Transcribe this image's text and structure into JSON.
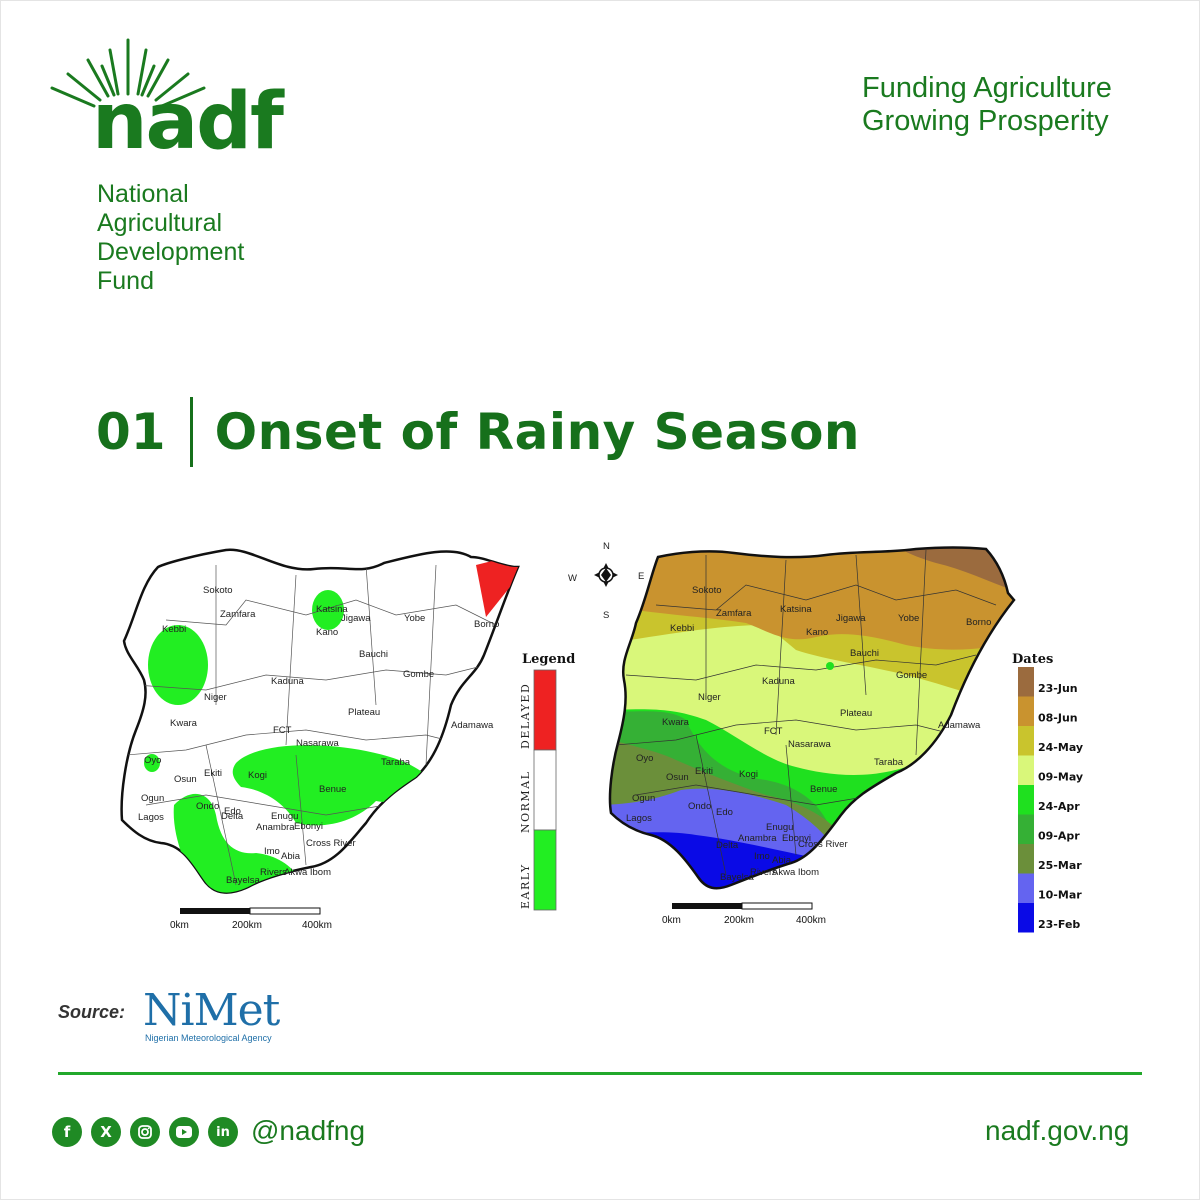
{
  "brand": {
    "logo_text": "nadf",
    "org_name_lines": [
      "National",
      "Agricultural",
      "Development",
      "Fund"
    ],
    "tagline_lines": [
      "Funding Agriculture",
      "Growing Prosperity"
    ],
    "color_primary": "#1a7a1f"
  },
  "section": {
    "number": "01",
    "title": "Onset of Rainy Season"
  },
  "map_left": {
    "legend_title": "Legend",
    "legend_categories": [
      {
        "label": "DELAYED",
        "color": "#ee2222"
      },
      {
        "label": "NORMAL",
        "color": "#ffffff"
      },
      {
        "label": "EARLY",
        "color": "#22ee22"
      }
    ],
    "state_labels": [
      "Sokoto",
      "Zamfara",
      "Katsina",
      "Jigawa",
      "Kano",
      "Yobe",
      "Borno",
      "Kebbi",
      "Bauchi",
      "Gombe",
      "Niger",
      "Kaduna",
      "Adamawa",
      "Kwara",
      "FCT",
      "Plateau",
      "Nasarawa",
      "Oyo",
      "Osun",
      "Ekiti",
      "Kogi",
      "Benue",
      "Taraba",
      "Ogun",
      "Ondo",
      "Edo",
      "Lagos",
      "Enugu",
      "Ebonyi",
      "Anambra",
      "Delta",
      "Imo",
      "Cross River",
      "Abia",
      "Rivers",
      "Akwa Ibom",
      "Bayelsa"
    ],
    "scale": [
      "0km",
      "200km",
      "400km"
    ]
  },
  "map_right": {
    "compass": [
      "N",
      "E",
      "S",
      "W"
    ],
    "legend_title": "Dates",
    "date_classes": [
      {
        "label": "23-Jun",
        "color": "#9b6b3e"
      },
      {
        "label": "08-Jun",
        "color": "#c9932f"
      },
      {
        "label": "24-May",
        "color": "#c9c42d"
      },
      {
        "label": "09-May",
        "color": "#d9f77a"
      },
      {
        "label": "24-Apr",
        "color": "#1fe01f"
      },
      {
        "label": "09-Apr",
        "color": "#35b035"
      },
      {
        "label": "25-Mar",
        "color": "#6b8f3a"
      },
      {
        "label": "10-Mar",
        "color": "#6464f0"
      },
      {
        "label": "23-Feb",
        "color": "#0a0ae6"
      }
    ],
    "state_labels": [
      "Sokoto",
      "Zamfara",
      "Katsina",
      "Jigawa",
      "Kano",
      "Yobe",
      "Borno",
      "Kebbi",
      "Bauchi",
      "Gombe",
      "Niger",
      "Kaduna",
      "Adamawa",
      "Kwara",
      "FCT",
      "Plateau",
      "Nasarawa",
      "Oyo",
      "Osun",
      "Ekiti",
      "Kogi",
      "Benue",
      "Taraba",
      "Ogun",
      "Ondo",
      "Edo",
      "Lagos",
      "Enugu",
      "Ebonyi",
      "Anambra",
      "Delta",
      "Imo",
      "Cross River",
      "Abia",
      "Rivers",
      "Akwa Ibom",
      "Bayelsa"
    ],
    "scale": [
      "0km",
      "200km",
      "400km"
    ]
  },
  "source": {
    "label": "Source:",
    "agency_logo_text": "NiMet",
    "agency_full_name": "Nigerian Meteorological Agency"
  },
  "footer": {
    "social_icons": [
      "facebook-icon",
      "x-icon",
      "instagram-icon",
      "youtube-icon",
      "linkedin-icon"
    ],
    "handle": "@nadfng",
    "website": "nadf.gov.ng",
    "accent_color": "#22a82b"
  }
}
